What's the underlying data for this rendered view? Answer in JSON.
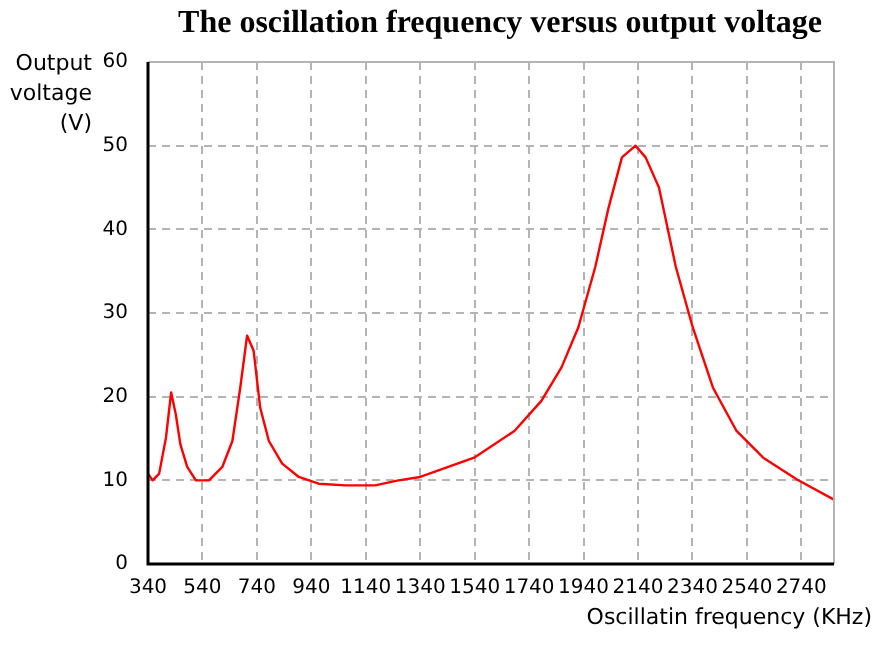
{
  "chart_data": {
    "type": "line",
    "title": "The oscillation frequency versus output voltage",
    "xlabel": "Oscillatin frequency (KHz)",
    "ylabel": "Output voltage (V)",
    "x": [
      340,
      357,
      381,
      406,
      425,
      442,
      459,
      484,
      516,
      564,
      613,
      650,
      679,
      704,
      728,
      752,
      784,
      833,
      894,
      967,
      1065,
      1174,
      1260,
      1340,
      1538,
      1686,
      1785,
      1859,
      1921,
      1983,
      2032,
      2081,
      2131,
      2168,
      2217,
      2279,
      2341,
      2415,
      2502,
      2600,
      2724,
      2860
    ],
    "values": [
      10.8,
      10,
      10.8,
      15.1,
      20.5,
      17.9,
      14.3,
      11.6,
      10,
      10,
      11.6,
      14.7,
      21.1,
      27.3,
      25.5,
      18.7,
      14.7,
      12,
      10.4,
      9.6,
      9.4,
      9.4,
      10,
      10.4,
      12.7,
      15.9,
      19.5,
      23.5,
      28.3,
      35.5,
      42.6,
      48.6,
      50,
      48.6,
      45,
      35.5,
      28.3,
      21.1,
      15.9,
      12.7,
      10.1,
      7.7
    ],
    "color": "#ff0000",
    "marker": "none",
    "line_style": "solid",
    "xlim": [
      340,
      2860
    ],
    "xticks": [
      340,
      540,
      740,
      940,
      1140,
      1340,
      1540,
      1740,
      1940,
      2140,
      2340,
      2540,
      2740
    ],
    "ylim": [
      0,
      60
    ],
    "yticks": [
      0,
      10,
      20,
      30,
      40,
      50,
      60
    ],
    "grid": true
  }
}
